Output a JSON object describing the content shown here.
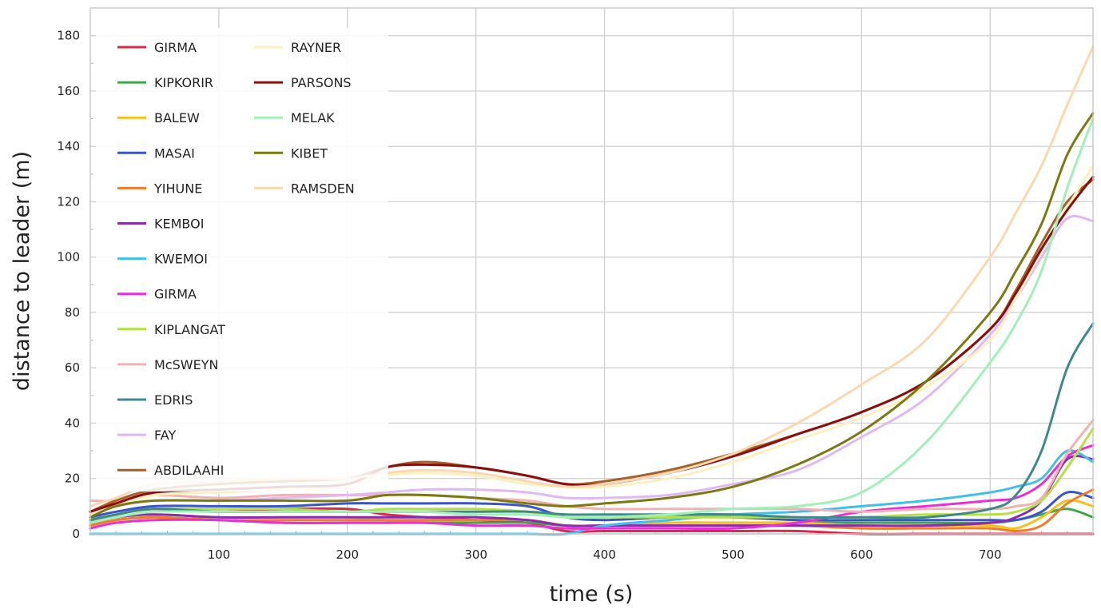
{
  "chart_data": {
    "type": "line",
    "title": "",
    "xlabel": "time (s)",
    "ylabel": "distance to leader (m)",
    "xlim": [
      0,
      780
    ],
    "ylim": [
      0,
      190
    ],
    "xticks": [
      100,
      200,
      300,
      400,
      500,
      600,
      700
    ],
    "yticks": [
      0,
      20,
      40,
      60,
      80,
      100,
      120,
      140,
      160,
      180
    ],
    "grid": true,
    "legend_position": "top-left, two columns",
    "x": [
      0,
      20,
      50,
      100,
      150,
      200,
      230,
      260,
      300,
      340,
      370,
      400,
      450,
      500,
      550,
      600,
      650,
      700,
      720,
      740,
      760,
      780
    ],
    "series": [
      {
        "name": "GIRMA",
        "color": "#d62b4a",
        "values": [
          5,
          7,
          9,
          8,
          9,
          9,
          7,
          6,
          5,
          4,
          1,
          1,
          1,
          1,
          1,
          0,
          0,
          0,
          0,
          0,
          0,
          0
        ]
      },
      {
        "name": "KIPKORIR",
        "color": "#3aa84a",
        "values": [
          3,
          5,
          6,
          5,
          4,
          4,
          4,
          4,
          4,
          4,
          3,
          3,
          4,
          4,
          4,
          4,
          4,
          4,
          5,
          7,
          9,
          6
        ]
      },
      {
        "name": "BALEW",
        "color": "#f2c21a",
        "values": [
          4,
          6,
          7,
          6,
          6,
          6,
          5,
          5,
          5,
          5,
          3,
          3,
          4,
          4,
          4,
          3,
          3,
          3,
          2,
          6,
          12,
          10
        ]
      },
      {
        "name": "MASAI",
        "color": "#3a55c8",
        "values": [
          6,
          8,
          10,
          10,
          10,
          11,
          11,
          11,
          11,
          10,
          6,
          5,
          6,
          6,
          5,
          5,
          5,
          5,
          5,
          8,
          15,
          13
        ]
      },
      {
        "name": "YIHUNE",
        "color": "#f07c2a",
        "values": [
          3,
          5,
          6,
          5,
          5,
          5,
          5,
          5,
          5,
          5,
          3,
          3,
          3,
          3,
          3,
          2,
          2,
          2,
          1,
          3,
          11,
          16
        ]
      },
      {
        "name": "KEMBOI",
        "color": "#8a2bb0",
        "values": [
          4,
          6,
          7,
          6,
          6,
          6,
          6,
          6,
          6,
          5,
          3,
          3,
          3,
          3,
          3,
          3,
          3,
          4,
          6,
          12,
          27,
          27
        ]
      },
      {
        "name": "KWEMOI",
        "color": "#3ec0ea",
        "values": [
          0,
          0,
          0,
          0,
          0,
          0,
          0,
          0,
          0,
          0,
          0,
          3,
          5,
          7,
          8,
          10,
          12,
          15,
          17,
          20,
          30,
          26
        ]
      },
      {
        "name": "GIRMA",
        "color": "#e830d4",
        "values": [
          2,
          4,
          5,
          5,
          4,
          4,
          4,
          4,
          3,
          3,
          2,
          2,
          2,
          2,
          4,
          8,
          10,
          12,
          13,
          18,
          28,
          32
        ]
      },
      {
        "name": "KIPLANGAT",
        "color": "#b4e042",
        "values": [
          5,
          7,
          9,
          9,
          9,
          8,
          9,
          9,
          9,
          8,
          6,
          6,
          6,
          6,
          6,
          6,
          7,
          7,
          8,
          12,
          24,
          38
        ]
      },
      {
        "name": "McSWEYN",
        "color": "#f0b2b2",
        "values": [
          12,
          12,
          14,
          13,
          14,
          14,
          14,
          14,
          13,
          12,
          10,
          9,
          9,
          9,
          9,
          8,
          9,
          9,
          10,
          13,
          29,
          41
        ]
      },
      {
        "name": "EDRIS",
        "color": "#3d8a88",
        "values": [
          5,
          7,
          9,
          8,
          8,
          8,
          8,
          8,
          8,
          8,
          7,
          7,
          7,
          7,
          6,
          6,
          6,
          9,
          14,
          30,
          60,
          76
        ]
      },
      {
        "name": "FAY",
        "color": "#e0b8f2",
        "values": [
          8,
          10,
          12,
          12,
          13,
          14,
          15,
          16,
          16,
          15,
          13,
          13,
          14,
          18,
          23,
          35,
          49,
          72,
          85,
          100,
          114,
          113
        ]
      },
      {
        "name": "ABDILAAHI",
        "color": "#a8602a",
        "values": [
          8,
          12,
          16,
          18,
          19,
          20,
          24,
          26,
          24,
          21,
          18,
          19,
          23,
          29,
          36,
          44,
          55,
          74,
          88,
          105,
          120,
          128
        ]
      },
      {
        "name": "RAYNER",
        "color": "#faf0c0",
        "values": [
          7,
          10,
          14,
          15,
          16,
          17,
          21,
          22,
          21,
          18,
          17,
          17,
          20,
          26,
          34,
          42,
          53,
          70,
          85,
          102,
          118,
          133
        ]
      },
      {
        "name": "PARSONS",
        "color": "#8b0e0e",
        "values": [
          8,
          11,
          15,
          16,
          17,
          18,
          24,
          25,
          24,
          21,
          18,
          18,
          22,
          28,
          36,
          44,
          55,
          74,
          87,
          103,
          117,
          129
        ]
      },
      {
        "name": "MELAK",
        "color": "#a0f0b8",
        "values": [
          4,
          6,
          8,
          8,
          8,
          8,
          8,
          8,
          7,
          7,
          6,
          6,
          7,
          9,
          10,
          15,
          33,
          62,
          76,
          95,
          125,
          150
        ]
      },
      {
        "name": "KIBET",
        "color": "#7a7a10",
        "values": [
          6,
          10,
          12,
          12,
          12,
          12,
          14,
          14,
          13,
          11,
          10,
          11,
          13,
          17,
          25,
          37,
          55,
          80,
          95,
          112,
          137,
          152
        ]
      },
      {
        "name": "RAMSDEN",
        "color": "#fad8b0",
        "values": [
          10,
          13,
          18,
          19,
          20,
          20,
          22,
          23,
          22,
          19,
          17,
          18,
          22,
          29,
          40,
          54,
          70,
          100,
          116,
          133,
          155,
          176
        ]
      }
    ]
  }
}
